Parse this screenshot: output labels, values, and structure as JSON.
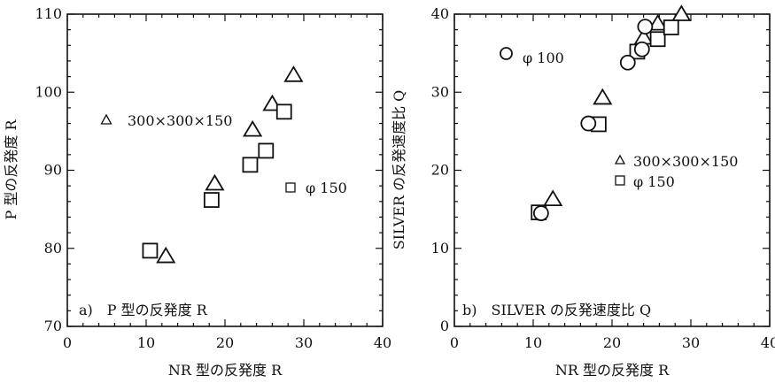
{
  "chart_data": [
    {
      "type": "scatter",
      "panel_label": "a)　P 型の反発度 R",
      "xlabel": "NR 型の反発度 R",
      "ylabel": "P 型の反発度 R",
      "xlim": [
        0,
        40
      ],
      "ylim": [
        70,
        110
      ],
      "xticks": [
        "0",
        "10",
        "20",
        "30",
        "40"
      ],
      "yticks": [
        "70",
        "80",
        "90",
        "100",
        "110"
      ],
      "series": [
        {
          "name": "300×300×150",
          "marker": "triangle",
          "points": [
            [
              12.5,
              79
            ],
            [
              18.7,
              88.3
            ],
            [
              23.5,
              95.2
            ],
            [
              26.0,
              98.5
            ],
            [
              28.7,
              102.2
            ]
          ]
        },
        {
          "name": "φ 150",
          "marker": "square",
          "points": [
            [
              10.5,
              79.7
            ],
            [
              18.3,
              86.2
            ],
            [
              23.2,
              90.7
            ],
            [
              25.2,
              92.5
            ],
            [
              27.5,
              97.5
            ]
          ]
        }
      ]
    },
    {
      "type": "scatter",
      "panel_label": "b)　SILVER の反発速度比 Q",
      "xlabel": "NR 型の反発度 R",
      "ylabel": "SILVER の反発速度比 Q",
      "xlim": [
        0,
        40
      ],
      "ylim": [
        0,
        40
      ],
      "xticks": [
        "0",
        "10",
        "20",
        "30",
        "40"
      ],
      "yticks": [
        "0",
        "10",
        "20",
        "30",
        "40"
      ],
      "series": [
        {
          "name": "300×300×150",
          "marker": "triangle",
          "points": [
            [
              12.5,
              16.3
            ],
            [
              18.8,
              29.3
            ],
            [
              24.0,
              37.0
            ],
            [
              25.8,
              38.8
            ],
            [
              28.8,
              40.0
            ]
          ]
        },
        {
          "name": "φ 150",
          "marker": "square",
          "points": [
            [
              10.7,
              14.6
            ],
            [
              18.3,
              25.9
            ],
            [
              23.2,
              35.2
            ],
            [
              25.8,
              36.8
            ],
            [
              27.5,
              38.3
            ]
          ]
        },
        {
          "name": "φ 100",
          "marker": "circle",
          "points": [
            [
              11.0,
              14.5
            ],
            [
              17.0,
              26.0
            ],
            [
              22.0,
              33.8
            ],
            [
              23.8,
              35.5
            ],
            [
              24.2,
              38.4
            ]
          ]
        }
      ]
    }
  ]
}
